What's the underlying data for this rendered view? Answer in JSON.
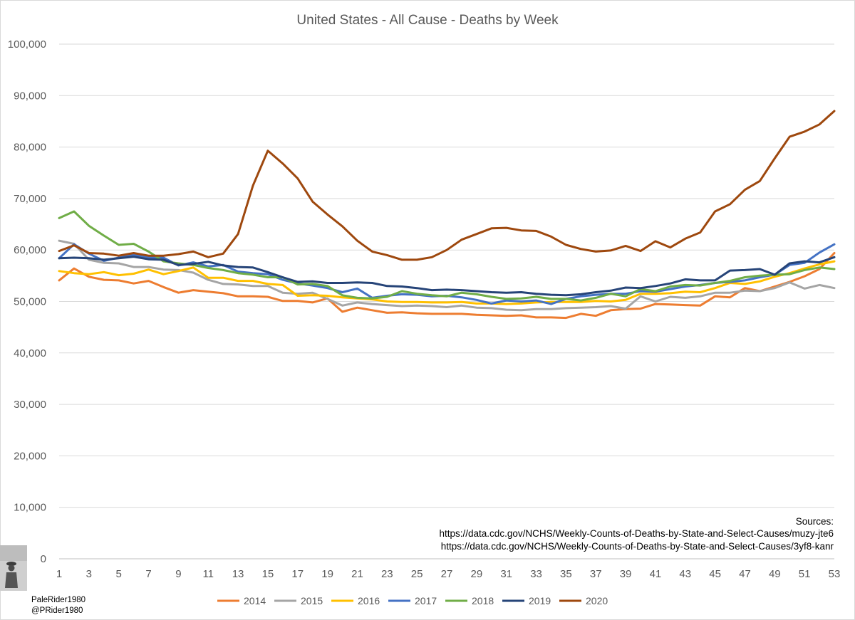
{
  "chart_data": {
    "type": "line",
    "title": "United States - All Cause - Deaths by Week",
    "xlabel": "",
    "ylabel": "",
    "xlim": [
      1,
      53
    ],
    "ylim": [
      0,
      100000
    ],
    "x_ticks": [
      "1",
      "3",
      "5",
      "7",
      "9",
      "11",
      "13",
      "15",
      "17",
      "19",
      "21",
      "23",
      "25",
      "27",
      "29",
      "31",
      "33",
      "35",
      "37",
      "39",
      "41",
      "43",
      "45",
      "47",
      "49",
      "51",
      "53"
    ],
    "y_ticks": [
      "0",
      "10,000",
      "20,000",
      "30,000",
      "40,000",
      "50,000",
      "60,000",
      "70,000",
      "80,000",
      "90,000",
      "100,000"
    ],
    "grid": true,
    "legend_position": "bottom",
    "series": [
      {
        "name": "2014",
        "color": "#ed7d31",
        "values": [
          54100,
          56400,
          54800,
          54200,
          54100,
          53500,
          54000,
          52800,
          51700,
          52200,
          51900,
          51600,
          51000,
          51000,
          50900,
          50100,
          50100,
          49800,
          50600,
          48000,
          48800,
          48300,
          47800,
          47900,
          47700,
          47600,
          47600,
          47600,
          47400,
          47300,
          47200,
          47300,
          46900,
          46900,
          46800,
          47600,
          47200,
          48300,
          48500,
          48600,
          49500,
          49400,
          49300,
          49200,
          51000,
          50800,
          52600,
          52000,
          52900,
          53800,
          54900,
          56300,
          59400
        ]
      },
      {
        "name": "2015",
        "color": "#a5a5a5",
        "values": [
          61800,
          61200,
          58100,
          57500,
          57400,
          56700,
          56700,
          56200,
          56100,
          55600,
          54200,
          53400,
          53300,
          53000,
          53000,
          51700,
          51500,
          51700,
          50500,
          49200,
          49800,
          49500,
          49300,
          49100,
          49200,
          49100,
          48900,
          49200,
          48800,
          48700,
          48400,
          48300,
          48500,
          48500,
          48700,
          48800,
          48900,
          49100,
          48600,
          51000,
          50000,
          50900,
          50700,
          51000,
          51700,
          51700,
          52100,
          52000,
          52600,
          53700,
          52500,
          53200,
          52600
        ]
      },
      {
        "name": "2016",
        "color": "#ffc000",
        "values": [
          55900,
          55500,
          55300,
          55700,
          55100,
          55400,
          56200,
          55300,
          55900,
          56600,
          54600,
          54600,
          54000,
          54000,
          53400,
          53200,
          51100,
          51200,
          51100,
          50800,
          50600,
          50400,
          50000,
          49900,
          49900,
          49800,
          49800,
          49900,
          49600,
          49600,
          49500,
          49600,
          49800,
          49900,
          49900,
          49900,
          50100,
          50000,
          50300,
          51500,
          51500,
          51600,
          51900,
          51800,
          52600,
          53600,
          53400,
          53900,
          54800,
          55500,
          56400,
          57200,
          57800
        ]
      },
      {
        "name": "2017",
        "color": "#4472c4",
        "values": [
          58400,
          61100,
          59300,
          57900,
          58500,
          59100,
          58500,
          58500,
          57000,
          57600,
          56800,
          57100,
          55800,
          55500,
          55300,
          54200,
          53500,
          53100,
          52600,
          51800,
          52500,
          50700,
          51100,
          51400,
          51300,
          51000,
          51100,
          50800,
          50300,
          49600,
          50200,
          50000,
          50200,
          49500,
          50500,
          51000,
          51300,
          51500,
          51500,
          52000,
          51900,
          52400,
          52900,
          53200,
          53600,
          53800,
          54100,
          54700,
          55200,
          57100,
          57500,
          59500,
          61100
        ]
      },
      {
        "name": "2018",
        "color": "#70ad47",
        "values": [
          66200,
          67500,
          64700,
          62800,
          61000,
          61200,
          59700,
          57800,
          57400,
          57100,
          56500,
          56100,
          55500,
          55200,
          54700,
          54700,
          53300,
          53400,
          53000,
          51200,
          50700,
          50600,
          50900,
          52000,
          51500,
          51200,
          51000,
          51700,
          51400,
          50900,
          50500,
          50600,
          50900,
          50500,
          50500,
          50200,
          50700,
          51500,
          51000,
          52400,
          52000,
          52900,
          53200,
          53100,
          53600,
          54000,
          54700,
          55000,
          55200,
          55300,
          56100,
          56600,
          56300
        ]
      },
      {
        "name": "2019",
        "color": "#264478",
        "values": [
          58400,
          58500,
          58400,
          58100,
          58400,
          58700,
          58200,
          58100,
          57100,
          57300,
          57700,
          57000,
          56700,
          56600,
          55700,
          54700,
          53800,
          53900,
          53600,
          53600,
          53700,
          53600,
          53000,
          52900,
          52600,
          52200,
          52300,
          52200,
          52000,
          51800,
          51700,
          51800,
          51500,
          51300,
          51200,
          51400,
          51800,
          52100,
          52700,
          52600,
          53000,
          53500,
          54300,
          54100,
          54100,
          56000,
          56100,
          56300,
          55200,
          57400,
          57800,
          57600,
          58600
        ]
      },
      {
        "name": "2020",
        "color": "#9e480e",
        "values": [
          59800,
          60900,
          59400,
          59300,
          58900,
          59400,
          58900,
          58900,
          59200,
          59700,
          58600,
          59300,
          63100,
          72500,
          79300,
          76800,
          73900,
          69400,
          66900,
          64600,
          61800,
          59700,
          59000,
          58100,
          58100,
          58600,
          60000,
          62000,
          63100,
          64200,
          64300,
          63800,
          63700,
          62600,
          61000,
          60200,
          59700,
          59900,
          60800,
          59800,
          61700,
          60500,
          62200,
          63400,
          67500,
          68900,
          71700,
          73400,
          77800,
          82000,
          83000,
          84400,
          87000
        ]
      }
    ]
  },
  "sources": {
    "label": "Sources:",
    "url1": "https://data.cdc.gov/NCHS/Weekly-Counts-of-Deaths-by-State-and-Select-Causes/muzy-jte6",
    "url2": "https://data.cdc.gov/NCHS/Weekly-Counts-of-Deaths-by-State-and-Select-Causes/3yf8-kanr"
  },
  "credit": {
    "name": "PaleRider1980",
    "handle": "@PRider1980"
  }
}
